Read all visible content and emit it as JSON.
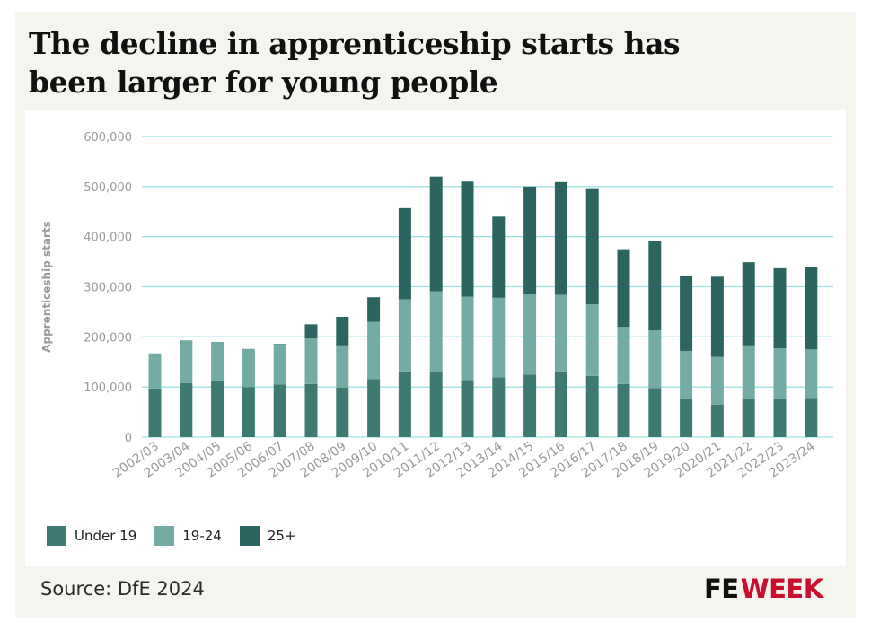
{
  "title": "The decline in apprenticeship starts has been larger for young people",
  "source": "Source: DfE 2024",
  "logo": {
    "part1": "FE",
    "part2": "WEEK"
  },
  "colors": {
    "under19": "#3d7a72",
    "age19_24": "#72aca5",
    "age25plus": "#2b6560",
    "grid": "#9ee3e4",
    "axis_text": "#9a9a9a"
  },
  "chart_data": {
    "type": "bar",
    "stacked": true,
    "ylabel": "Apprenticeship starts",
    "xlabel": "",
    "ylim": [
      0,
      600000
    ],
    "yticks": [
      0,
      100000,
      200000,
      300000,
      400000,
      500000,
      600000
    ],
    "ytick_labels": [
      "0",
      "100,000",
      "200,000",
      "300,000",
      "400,000",
      "500,000",
      "600,000"
    ],
    "grid": true,
    "legend_position": "bottom-left",
    "categories": [
      "2002/03",
      "2003/04",
      "2004/05",
      "2005/06",
      "2006/07",
      "2007/08",
      "2008/09",
      "2009/10",
      "2010/11",
      "2011/12",
      "2012/13",
      "2013/14",
      "2014/15",
      "2015/16",
      "2016/17",
      "2017/18",
      "2018/19",
      "2019/20",
      "2020/21",
      "2021/22",
      "2022/23",
      "2023/24"
    ],
    "series": [
      {
        "name": "Under 19",
        "color": "#3d7a72",
        "values": [
          97000,
          108000,
          113000,
          100000,
          105000,
          106000,
          99000,
          116000,
          131000,
          129000,
          114000,
          119000,
          125000,
          131000,
          122000,
          106000,
          98000,
          76000,
          65000,
          77000,
          77000,
          78000
        ]
      },
      {
        "name": "19-24",
        "color": "#72aca5",
        "values": [
          70000,
          85000,
          77000,
          76000,
          80000,
          91000,
          84000,
          114000,
          144000,
          162000,
          166000,
          159000,
          160000,
          153000,
          143000,
          114000,
          115000,
          96000,
          95000,
          106000,
          100000,
          97000
        ]
      },
      {
        "name": "25+",
        "color": "#2b6560",
        "values": [
          0,
          0,
          0,
          0,
          1000,
          28000,
          57000,
          49000,
          182000,
          229000,
          230000,
          162000,
          215000,
          225000,
          230000,
          155000,
          179000,
          150000,
          160000,
          166000,
          160000,
          164000
        ]
      }
    ]
  }
}
